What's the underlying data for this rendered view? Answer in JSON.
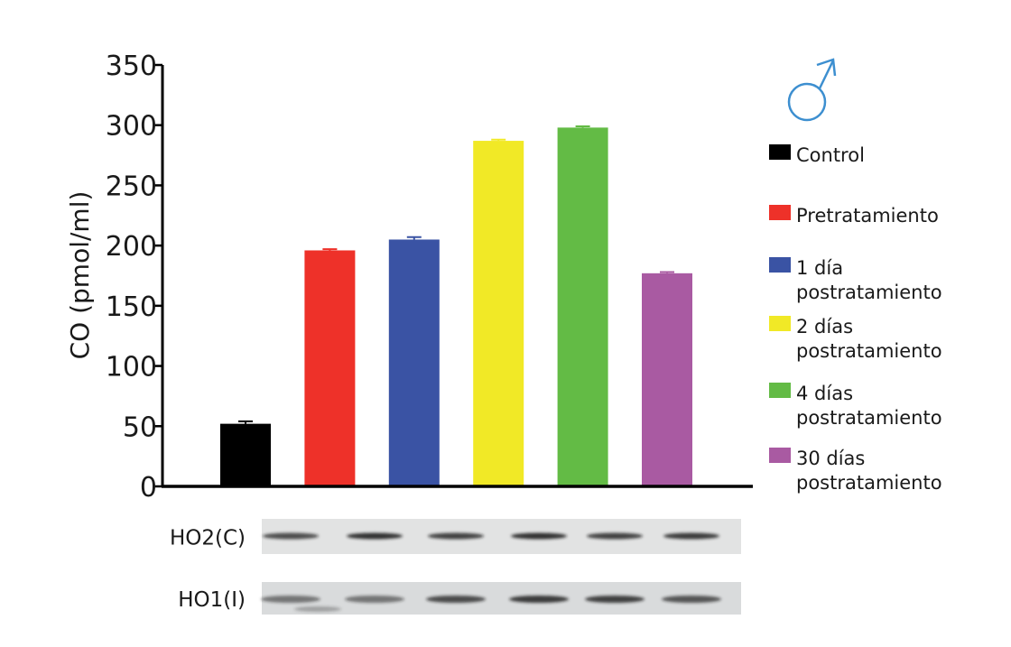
{
  "chart_data": {
    "type": "bar",
    "categories": [
      "Control",
      "Pretratamiento",
      "1 día postratamiento",
      "2 días postratamiento",
      "4 días postratamiento",
      "30 días postratamiento"
    ],
    "series": [
      {
        "values": [
          52,
          196,
          205,
          287,
          298,
          177
        ],
        "errors": [
          2,
          1,
          2,
          1,
          1,
          1
        ],
        "colors": [
          "#000000",
          "#ee3129",
          "#3a53a4",
          "#f1e926",
          "#63bb45",
          "#a95aa2"
        ]
      }
    ],
    "ylabel": "CO (pmol/ml)",
    "xlabel": "",
    "ylim": [
      0,
      350
    ],
    "yticks": [
      0,
      50,
      100,
      150,
      200,
      250,
      300,
      350
    ],
    "grid": false,
    "legend": {
      "position": "right",
      "entries": [
        {
          "lines": [
            "Control"
          ],
          "color": "#000000"
        },
        {
          "lines": [
            "Pretratamiento"
          ],
          "color": "#ee3129"
        },
        {
          "lines": [
            "1 día",
            "postratamiento"
          ],
          "color": "#3a53a4"
        },
        {
          "lines": [
            "2 días",
            "postratamiento"
          ],
          "color": "#f1e926"
        },
        {
          "lines": [
            "4 días",
            "postratamiento"
          ],
          "color": "#63bb45"
        },
        {
          "lines": [
            "30 días",
            "postratamiento"
          ],
          "color": "#a95aa2"
        }
      ]
    },
    "symbol": {
      "glyph": "♂",
      "name": "male-symbol-icon",
      "color": "#3d8fd0"
    },
    "blots": [
      {
        "label": "HO2(C)",
        "name": "blot-ho2"
      },
      {
        "label": "HO1(I)",
        "name": "blot-ho1"
      }
    ]
  }
}
